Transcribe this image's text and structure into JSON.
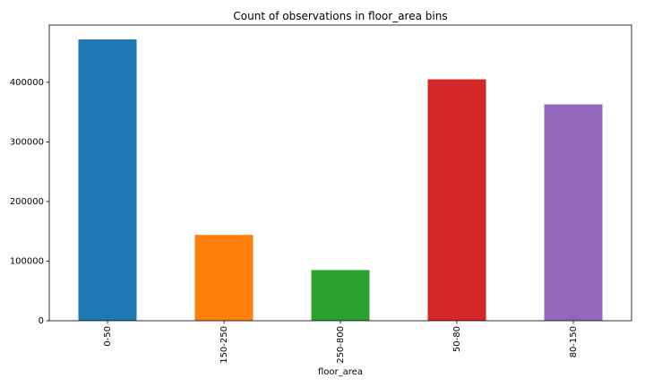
{
  "chart_data": {
    "type": "bar",
    "title": "Count of observations in floor_area bins",
    "xlabel": "floor_area",
    "ylabel": "",
    "categories": [
      "0-50",
      "150-250",
      "250-800",
      "50-80",
      "80-150"
    ],
    "values": [
      472000,
      144000,
      85000,
      405000,
      363000
    ],
    "colors": [
      "#1f77b4",
      "#ff7f0e",
      "#2ca02c",
      "#d62728",
      "#9467bd"
    ],
    "ylim": [
      0,
      496000
    ],
    "yticks": [
      0,
      100000,
      200000,
      300000,
      400000
    ],
    "ytick_labels": [
      "0",
      "100000",
      "200000",
      "300000",
      "400000"
    ],
    "grid": false,
    "legend": "none"
  }
}
